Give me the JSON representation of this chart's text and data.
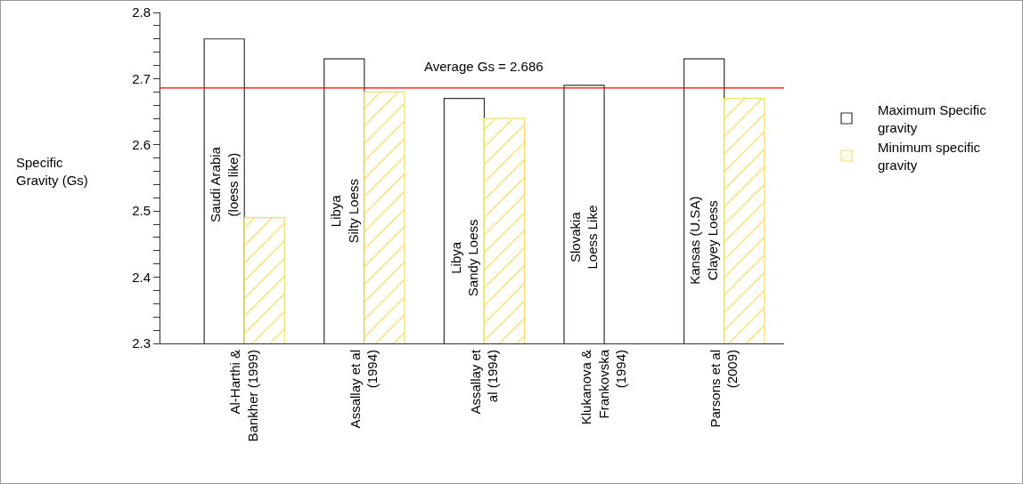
{
  "chart_data": {
    "type": "bar",
    "ylabel": "Specific\nGravity (Gs)",
    "categories": [
      "Al-Harthi &\nBankher (1999)",
      "Assallay et al\n(1994)",
      "Assallay et\nal (1994)",
      "Klukanova &\nFrankovska\n(1994)",
      "Parsons et al\n(2009)"
    ],
    "series": [
      {
        "name": "Maximum Specific\ngravity",
        "color": "#ffffff",
        "values": [
          2.76,
          2.73,
          2.67,
          2.69,
          2.73
        ]
      },
      {
        "name": "Minimum specific\ngravity",
        "color": "#f5dc6e",
        "values": [
          2.49,
          2.68,
          2.64,
          null,
          2.67
        ]
      }
    ],
    "ylim": [
      2.3,
      2.8
    ],
    "yticks": [
      2.3,
      {
        "value": 2.32,
        "label": null
      },
      {
        "value": 2.34,
        "label": null
      },
      {
        "value": 2.36,
        "label": null
      },
      {
        "value": 2.38,
        "label": null
      },
      2.4,
      {
        "value": 2.42,
        "label": null
      },
      {
        "value": 2.44,
        "label": null
      },
      {
        "value": 2.46,
        "label": null
      },
      {
        "value": 2.48,
        "label": null
      },
      2.5,
      {
        "value": 2.52,
        "label": null
      },
      {
        "value": 2.54,
        "label": null
      },
      {
        "value": 2.56,
        "label": null
      },
      {
        "value": 2.58,
        "label": null
      },
      2.6,
      {
        "value": 2.62,
        "label": null
      },
      {
        "value": 2.64,
        "label": null
      },
      {
        "value": 2.66,
        "label": null
      },
      {
        "value": 2.68,
        "label": null
      },
      2.7,
      {
        "value": 2.72,
        "label": null
      },
      {
        "value": 2.74,
        "label": null
      },
      {
        "value": 2.76,
        "label": null
      },
      {
        "value": 2.78,
        "label": null
      },
      2.8
    ],
    "ref_lines": [
      {
        "axis": "y",
        "value": 2.686,
        "label": "Average Gs = 2.686",
        "color": "#ff0000"
      }
    ],
    "annotations": [
      {
        "text": "Saudi Arabia\n(loess like)",
        "x": "Al-Harthi &\nBankher (1999)",
        "y": 2.54
      },
      {
        "text": "Libya\nSilty Loess",
        "x": "Assallay et al\n(1994)",
        "y": 2.5
      },
      {
        "text": "Libya\nSandy Loess",
        "x": "Assallay et\nal (1994)",
        "y": 2.43
      },
      {
        "text": "Slovakia\nLoess Like",
        "x": "Klukanova &\nFrankovska\n(1994)",
        "y": 2.46
      },
      {
        "text": "Kansas (U.SA)\nClayey Loess",
        "x": "Parsons et al\n(2009)",
        "y": 2.455
      }
    ],
    "grid": false,
    "legend": "right"
  }
}
